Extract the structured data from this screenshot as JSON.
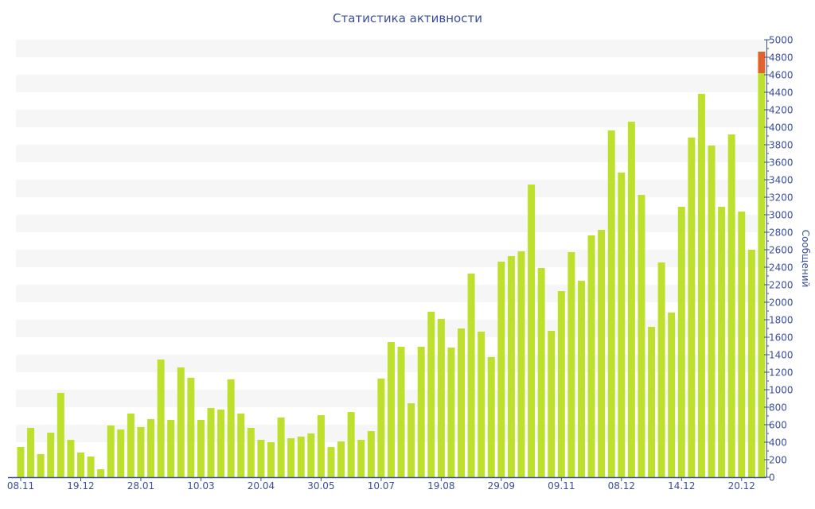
{
  "chart_data": {
    "type": "bar",
    "title": "Статистика активности",
    "ylabel": "Сообщений",
    "xlabel": "",
    "ylim": [
      0,
      5000
    ],
    "yticks": [
      0,
      200,
      400,
      600,
      800,
      1000,
      1200,
      1400,
      1600,
      1800,
      2000,
      2200,
      2400,
      2600,
      2800,
      3000,
      3200,
      3400,
      3600,
      3800,
      4000,
      4200,
      4400,
      4600,
      4800,
      5000
    ],
    "xtick_labels": [
      "08.11",
      "19.12",
      "28.01",
      "10.03",
      "20.04",
      "30.05",
      "10.07",
      "19.08",
      "29.09",
      "09.11",
      "08.12",
      "14.12",
      "20.12"
    ],
    "xtick_every": 6,
    "grid": "alternating horizontal bands",
    "colors": {
      "main": "#bde02d",
      "extra": "#e2622b",
      "axis": "#3a4f9a",
      "band": "#f6f6f6"
    },
    "series": [
      {
        "name": "main",
        "values": [
          345,
          564,
          264,
          509,
          964,
          427,
          282,
          236,
          91,
          591,
          545,
          727,
          573,
          664,
          1345,
          655,
          1255,
          1136,
          655,
          791,
          773,
          1118,
          727,
          564,
          427,
          400,
          682,
          445,
          464,
          500,
          709,
          345,
          409,
          745,
          427,
          527,
          1127,
          1545,
          1491,
          845,
          1491,
          1891,
          1809,
          1482,
          1700,
          2327,
          1664,
          1373,
          2464,
          2527,
          2582,
          3345,
          2391,
          1673,
          2127,
          2573,
          2245,
          2764,
          2827,
          3964,
          3482,
          4064,
          3227,
          1718,
          2455,
          1882,
          3091,
          3882,
          4382,
          3791,
          3091,
          3918,
          3036,
          2600,
          4618
        ]
      },
      {
        "name": "extra",
        "values": [
          0,
          0,
          0,
          0,
          0,
          0,
          0,
          0,
          0,
          0,
          0,
          0,
          0,
          0,
          0,
          0,
          0,
          0,
          0,
          0,
          0,
          0,
          0,
          0,
          0,
          0,
          0,
          0,
          0,
          0,
          0,
          0,
          0,
          0,
          0,
          0,
          0,
          0,
          0,
          0,
          0,
          0,
          0,
          0,
          0,
          0,
          0,
          0,
          0,
          0,
          0,
          0,
          0,
          0,
          0,
          0,
          0,
          0,
          0,
          0,
          0,
          0,
          0,
          0,
          0,
          0,
          0,
          0,
          0,
          0,
          0,
          0,
          0,
          0,
          246
        ]
      }
    ]
  }
}
